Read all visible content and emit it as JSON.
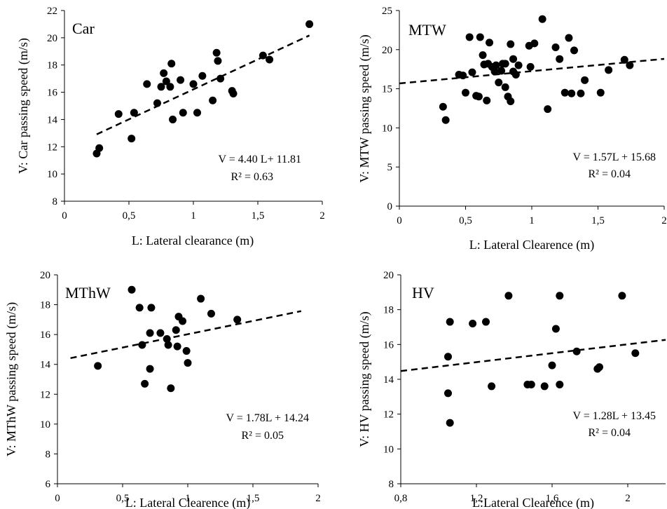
{
  "chart_data": [
    {
      "type": "scatter",
      "title": "Car",
      "xlabel": "L: Lateral clearance (m)",
      "ylabel": "V: Car passing speed  (m/s)",
      "xlim": [
        0,
        2
      ],
      "ylim": [
        8,
        22
      ],
      "xticks": [
        "0",
        "0,5",
        "1",
        "1,5",
        "2"
      ],
      "yticks": [
        "8",
        "10",
        "12",
        "14",
        "16",
        "18",
        "20",
        "22"
      ],
      "equation": "V = 4.40 L+ 11.81",
      "r2": "R² = 0.63",
      "trend": {
        "slope": 4.4,
        "intercept": 11.81,
        "x": [
          0.25,
          1.9
        ]
      },
      "points": [
        [
          0.25,
          11.5
        ],
        [
          0.27,
          11.9
        ],
        [
          0.42,
          14.4
        ],
        [
          0.52,
          12.6
        ],
        [
          0.54,
          14.5
        ],
        [
          0.64,
          16.6
        ],
        [
          0.72,
          15.2
        ],
        [
          0.75,
          16.4
        ],
        [
          0.77,
          17.4
        ],
        [
          0.79,
          16.8
        ],
        [
          0.82,
          16.4
        ],
        [
          0.83,
          18.1
        ],
        [
          0.84,
          14.0
        ],
        [
          0.9,
          16.9
        ],
        [
          0.92,
          14.5
        ],
        [
          1.0,
          16.6
        ],
        [
          1.03,
          14.5
        ],
        [
          1.07,
          17.2
        ],
        [
          1.15,
          15.4
        ],
        [
          1.18,
          18.9
        ],
        [
          1.19,
          18.3
        ],
        [
          1.21,
          17.0
        ],
        [
          1.3,
          16.1
        ],
        [
          1.31,
          15.9
        ],
        [
          1.54,
          18.7
        ],
        [
          1.59,
          18.4
        ],
        [
          1.9,
          21.0
        ]
      ]
    },
    {
      "type": "scatter",
      "title": "MTW",
      "xlabel": "L: Lateral Clearence (m)",
      "ylabel": "V: MTW passing speed (m/s)",
      "xlim": [
        0,
        2
      ],
      "ylim": [
        0,
        25
      ],
      "xticks": [
        "0",
        "0,5",
        "1",
        "1,5",
        "2"
      ],
      "yticks": [
        "0",
        "5",
        "10",
        "15",
        "20",
        "25"
      ],
      "equation": "V = 1.57L + 15.68",
      "r2": "R² = 0.04",
      "trend": {
        "slope": 1.57,
        "intercept": 15.68,
        "x": [
          0,
          2
        ]
      },
      "points": [
        [
          0.33,
          12.7
        ],
        [
          0.35,
          11.0
        ],
        [
          0.45,
          16.8
        ],
        [
          0.48,
          16.7
        ],
        [
          0.5,
          14.5
        ],
        [
          0.53,
          21.6
        ],
        [
          0.55,
          17.1
        ],
        [
          0.58,
          14.1
        ],
        [
          0.6,
          14.0
        ],
        [
          0.61,
          21.6
        ],
        [
          0.63,
          19.3
        ],
        [
          0.64,
          18.1
        ],
        [
          0.66,
          13.5
        ],
        [
          0.67,
          18.2
        ],
        [
          0.68,
          20.9
        ],
        [
          0.7,
          17.8
        ],
        [
          0.72,
          17.2
        ],
        [
          0.73,
          18.0
        ],
        [
          0.75,
          15.8
        ],
        [
          0.77,
          17.3
        ],
        [
          0.78,
          18.2
        ],
        [
          0.8,
          15.2
        ],
        [
          0.8,
          18.2
        ],
        [
          0.82,
          14.0
        ],
        [
          0.84,
          13.4
        ],
        [
          0.84,
          20.7
        ],
        [
          0.86,
          18.8
        ],
        [
          0.86,
          17.2
        ],
        [
          0.88,
          16.8
        ],
        [
          0.9,
          18.0
        ],
        [
          0.98,
          20.5
        ],
        [
          0.99,
          17.8
        ],
        [
          1.02,
          20.8
        ],
        [
          1.08,
          23.9
        ],
        [
          1.12,
          12.4
        ],
        [
          1.18,
          20.3
        ],
        [
          1.21,
          18.8
        ],
        [
          1.25,
          14.5
        ],
        [
          1.28,
          21.5
        ],
        [
          1.3,
          14.4
        ],
        [
          1.32,
          19.9
        ],
        [
          1.37,
          14.4
        ],
        [
          1.4,
          16.1
        ],
        [
          1.52,
          14.5
        ],
        [
          1.58,
          17.4
        ],
        [
          1.7,
          18.7
        ],
        [
          1.74,
          18.0
        ]
      ]
    },
    {
      "type": "scatter",
      "title": "MThW",
      "xlabel": "L: Lateral Clearence (m)",
      "ylabel": "V: MThW passing speed (m/s)",
      "xlim": [
        0,
        2
      ],
      "ylim": [
        6,
        20
      ],
      "xticks": [
        "0",
        "0,5",
        "1",
        "1,5",
        "2"
      ],
      "yticks": [
        "6",
        "8",
        "10",
        "12",
        "14",
        "16",
        "18",
        "20"
      ],
      "equation": "V = 1.78L + 14.24",
      "r2": "R² = 0.05",
      "trend": {
        "slope": 1.78,
        "intercept": 14.24,
        "x": [
          0.1,
          1.87
        ]
      },
      "points": [
        [
          0.31,
          13.9
        ],
        [
          0.57,
          19.0
        ],
        [
          0.63,
          17.8
        ],
        [
          0.65,
          15.3
        ],
        [
          0.67,
          12.7
        ],
        [
          0.71,
          16.1
        ],
        [
          0.71,
          13.7
        ],
        [
          0.72,
          17.8
        ],
        [
          0.79,
          16.1
        ],
        [
          0.84,
          15.7
        ],
        [
          0.85,
          15.3
        ],
        [
          0.87,
          12.4
        ],
        [
          0.91,
          16.3
        ],
        [
          0.92,
          15.2
        ],
        [
          0.93,
          17.2
        ],
        [
          0.96,
          16.9
        ],
        [
          0.99,
          14.9
        ],
        [
          1.0,
          14.1
        ],
        [
          1.1,
          18.4
        ],
        [
          1.18,
          17.4
        ],
        [
          1.38,
          17.0
        ]
      ]
    },
    {
      "type": "scatter",
      "title": "HV",
      "xlabel": "L:Lateral Clearence (m)",
      "ylabel": "V: HV passing speed (m/s)",
      "xlim": [
        0.8,
        2.2
      ],
      "ylim": [
        8,
        20
      ],
      "xticks": [
        "0,8",
        "1,2",
        "1,6",
        "2"
      ],
      "yticks": [
        "8",
        "10",
        "12",
        "14",
        "16",
        "18",
        "20"
      ],
      "equation": "V = 1.28L + 13.45",
      "r2": "R² = 0.04",
      "trend": {
        "slope": 1.28,
        "intercept": 13.45,
        "x": [
          0.8,
          2.2
        ]
      },
      "points": [
        [
          1.05,
          15.3
        ],
        [
          1.05,
          13.2
        ],
        [
          1.06,
          17.3
        ],
        [
          1.06,
          11.5
        ],
        [
          1.18,
          17.2
        ],
        [
          1.25,
          17.3
        ],
        [
          1.28,
          13.6
        ],
        [
          1.37,
          18.8
        ],
        [
          1.47,
          13.7
        ],
        [
          1.49,
          13.7
        ],
        [
          1.56,
          13.6
        ],
        [
          1.6,
          14.8
        ],
        [
          1.62,
          16.9
        ],
        [
          1.64,
          18.8
        ],
        [
          1.64,
          13.7
        ],
        [
          1.73,
          15.6
        ],
        [
          1.84,
          14.6
        ],
        [
          1.85,
          14.7
        ],
        [
          1.97,
          18.8
        ],
        [
          2.04,
          15.5
        ]
      ]
    }
  ]
}
